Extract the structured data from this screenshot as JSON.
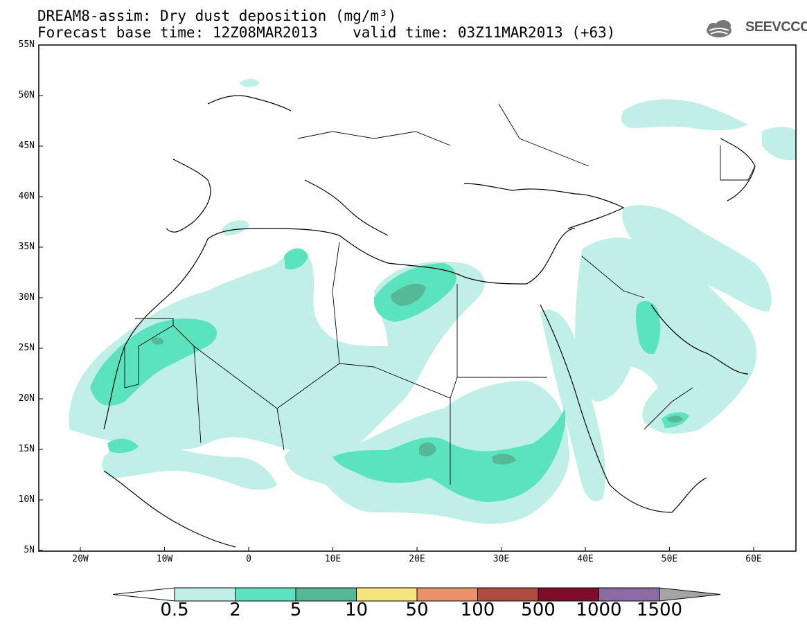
{
  "header": {
    "title_line1": "DREAM8-assim: Dry dust deposition (mg/m³)",
    "title_line2": "Forecast base time: 12Z08MAR2013    valid time: 03Z11MAR2013 (+63)",
    "logo_text": "SEEVCCC"
  },
  "map": {
    "lat_labels": [
      "55N",
      "50N",
      "45N",
      "40N",
      "35N",
      "30N",
      "25N",
      "20N",
      "15N",
      "10N",
      "5N"
    ],
    "lon_labels": [
      "20W",
      "10W",
      "0",
      "10E",
      "20E",
      "30E",
      "40E",
      "50E",
      "60E"
    ],
    "fill_colors": {
      "c0_5": "#c0efe8",
      "c2": "#5be3bd",
      "c5": "#55b897",
      "c10": "#f5e57b",
      "c50": "#ec8f6b",
      "c100": "#b04b3f",
      "c500": "#800b2a",
      "c1000": "#8b6ba2",
      "c1500": "#a5a5a5"
    }
  },
  "colorbar": {
    "labels": [
      "0.5",
      "2",
      "5",
      "10",
      "50",
      "100",
      "500",
      "1000",
      "1500"
    ],
    "colors": [
      "#c0efe8",
      "#5be3bd",
      "#55b897",
      "#f5e57b",
      "#ec8f6b",
      "#b04b3f",
      "#800b2a",
      "#8b6ba2"
    ]
  }
}
